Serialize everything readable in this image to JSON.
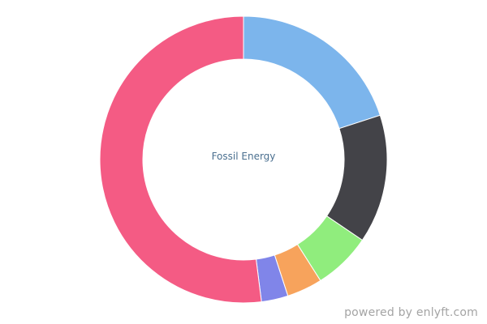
{
  "chart_data": {
    "type": "pie",
    "center_label": "Fossil Energy",
    "slices": [
      {
        "value": 20.0,
        "color": "#7cb5ec"
      },
      {
        "value": 14.5,
        "color": "#434348"
      },
      {
        "value": 6.5,
        "color": "#90ed7d"
      },
      {
        "value": 4.0,
        "color": "#f7a35c"
      },
      {
        "value": 3.0,
        "color": "#8085e9"
      },
      {
        "value": 52.0,
        "color": "#f45b84"
      }
    ]
  },
  "footer": {
    "credit": "powered by enlyft.com"
  }
}
